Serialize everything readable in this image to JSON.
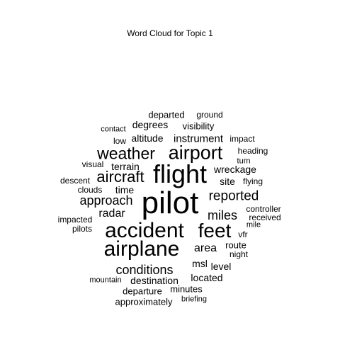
{
  "title": "Word Cloud for Topic 1",
  "words": [
    {
      "text": "pilot"
    },
    {
      "text": "flight"
    },
    {
      "text": "airplane"
    },
    {
      "text": "accident"
    },
    {
      "text": "feet"
    },
    {
      "text": "airport"
    },
    {
      "text": "weather"
    },
    {
      "text": "aircraft"
    },
    {
      "text": "reported"
    },
    {
      "text": "approach"
    },
    {
      "text": "miles"
    },
    {
      "text": "conditions"
    },
    {
      "text": "instrument"
    },
    {
      "text": "radar"
    },
    {
      "text": "area"
    },
    {
      "text": "time"
    },
    {
      "text": "terrain"
    },
    {
      "text": "wreckage"
    },
    {
      "text": "degrees"
    },
    {
      "text": "departed"
    },
    {
      "text": "site"
    },
    {
      "text": "visibility"
    },
    {
      "text": "altitude"
    },
    {
      "text": "destination"
    },
    {
      "text": "route"
    },
    {
      "text": "located"
    },
    {
      "text": "msl"
    },
    {
      "text": "level"
    },
    {
      "text": "departure"
    },
    {
      "text": "ground"
    },
    {
      "text": "minutes"
    },
    {
      "text": "approximately"
    },
    {
      "text": "clouds"
    },
    {
      "text": "descent"
    },
    {
      "text": "visual"
    },
    {
      "text": "low"
    },
    {
      "text": "contact"
    },
    {
      "text": "heading"
    },
    {
      "text": "impact"
    },
    {
      "text": "turn"
    },
    {
      "text": "flying"
    },
    {
      "text": "controller"
    },
    {
      "text": "received"
    },
    {
      "text": "mile"
    },
    {
      "text": "vfr"
    },
    {
      "text": "night"
    },
    {
      "text": "impacted"
    },
    {
      "text": "pilots"
    },
    {
      "text": "mountain"
    },
    {
      "text": "briefing"
    }
  ]
}
